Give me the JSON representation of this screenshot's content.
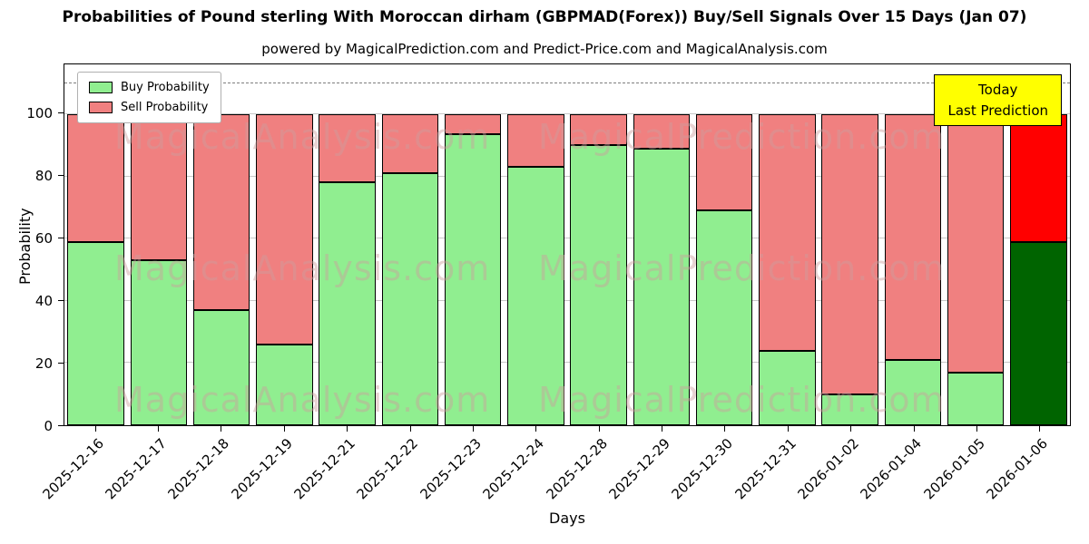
{
  "title": "Probabilities of Pound sterling With Moroccan dirham (GBPMAD(Forex)) Buy/Sell Signals Over 15 Days (Jan 07)",
  "subtitle": "powered by MagicalPrediction.com and Predict-Price.com and MagicalAnalysis.com",
  "chart_data": {
    "type": "bar",
    "stacked": true,
    "xlabel": "Days",
    "ylabel": "Probability",
    "ylim": [
      0,
      116
    ],
    "yticks": [
      0,
      20,
      40,
      60,
      80,
      100
    ],
    "dashed_line_y": 110,
    "grid": true,
    "categories": [
      "2025-12-16",
      "2025-12-17",
      "2025-12-18",
      "2025-12-19",
      "2025-12-21",
      "2025-12-22",
      "2025-12-23",
      "2025-12-24",
      "2025-12-28",
      "2025-12-29",
      "2025-12-30",
      "2025-12-31",
      "2026-01-02",
      "2026-01-04",
      "2026-01-05",
      "2026-01-06"
    ],
    "series": [
      {
        "name": "Buy Probability",
        "color": "#90EE90",
        "values": [
          59,
          53,
          37,
          26,
          78,
          81,
          93.5,
          83,
          90,
          89,
          69,
          24,
          10,
          21,
          17,
          59
        ]
      },
      {
        "name": "Sell Probability",
        "color": "#F08080",
        "values": [
          41,
          47,
          63,
          74,
          22,
          19,
          6.5,
          17,
          10,
          11,
          31,
          76,
          90,
          79,
          83,
          41
        ]
      }
    ],
    "highlight_bar": {
      "index": 15,
      "buy_color": "#006400",
      "sell_color": "#FF0000"
    },
    "legend": {
      "position": "upper-left",
      "items": [
        "Buy Probability",
        "Sell Probability"
      ]
    },
    "annotation": {
      "line1": "Today",
      "line2": "Last Prediction",
      "bg_color": "#FFFF00"
    },
    "watermark_texts": [
      "MagicalAnalysis.com",
      "MagicalPrediction.com"
    ]
  }
}
